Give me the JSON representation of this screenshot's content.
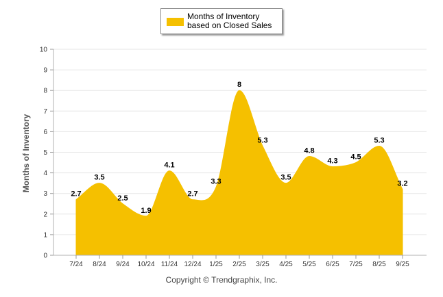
{
  "chart_data": {
    "type": "area",
    "title": "",
    "series": [
      {
        "name": "Months of Inventory based on Closed Sales",
        "values": [
          2.7,
          3.5,
          2.5,
          1.9,
          4.1,
          2.7,
          3.3,
          8,
          5.3,
          3.5,
          4.8,
          4.3,
          4.5,
          5.3,
          3.2
        ]
      }
    ],
    "categories": [
      "7/24",
      "8/24",
      "9/24",
      "10/24",
      "11/24",
      "12/24",
      "1/25",
      "2/25",
      "3/25",
      "4/25",
      "5/25",
      "6/25",
      "7/25",
      "8/25",
      "9/25"
    ],
    "value_labels": [
      "2.7",
      "3.5",
      "2.5",
      "1.9",
      "4.1",
      "2.7",
      "3.3",
      "8",
      "5.3",
      "3.5",
      "4.8",
      "4.3",
      "4.5",
      "5.3",
      "3.2"
    ],
    "xlabel": "",
    "ylabel": "Months of Inventory",
    "ylim": [
      0,
      10
    ],
    "yticks": [
      "0",
      "1",
      "2",
      "3",
      "4",
      "5",
      "6",
      "7",
      "8",
      "9",
      "10"
    ],
    "grid": true,
    "legend_position": "top-center",
    "color": "#f5c000"
  },
  "legend": {
    "label": "Months of Inventory based on Closed Sales"
  },
  "credit": "Copyright © Trendgraphix, Inc."
}
